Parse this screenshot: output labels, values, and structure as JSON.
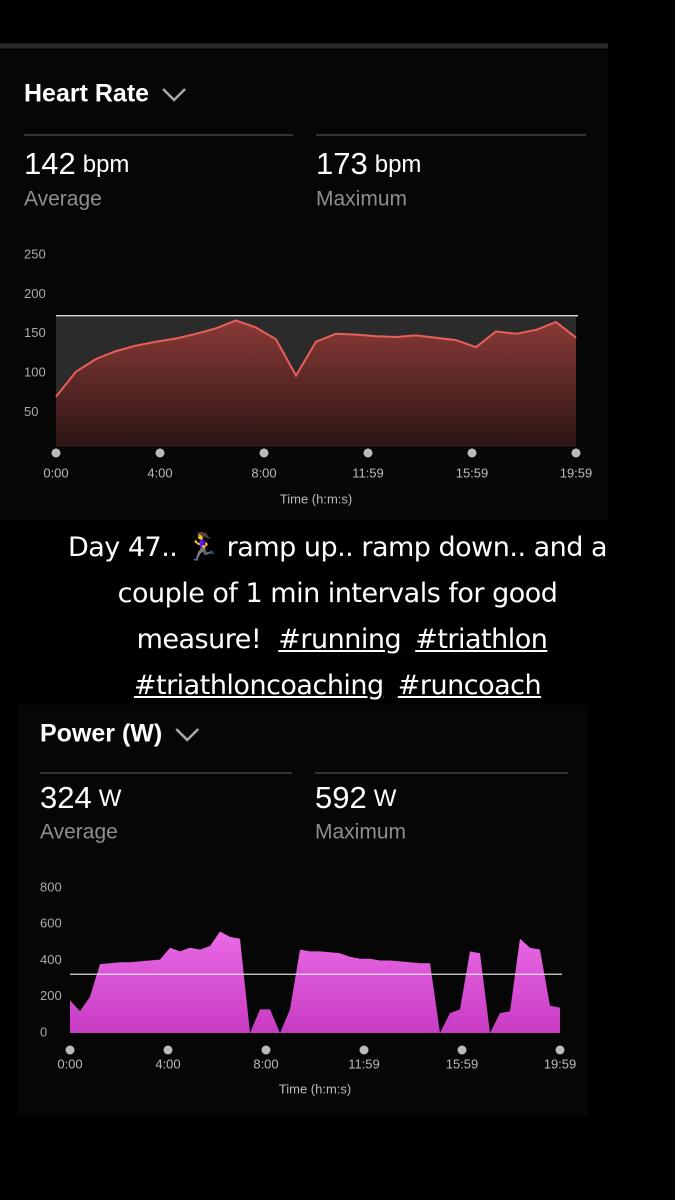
{
  "chart_data": [
    {
      "type": "area",
      "title": "Heart Rate",
      "stats": [
        {
          "value": 142,
          "unit": "bpm",
          "label": "Average"
        },
        {
          "value": 173,
          "unit": "bpm",
          "label": "Maximum"
        }
      ],
      "xlabel": "Time (h:m:s)",
      "xtick_labels": [
        "0:00",
        "4:00",
        "8:00",
        "11:59",
        "15:59",
        "19:59"
      ],
      "values": [
        70,
        102,
        118,
        128,
        135,
        140,
        144,
        150,
        157,
        167,
        158,
        143,
        97,
        140,
        150,
        149,
        147,
        146,
        148,
        145,
        142,
        133,
        153,
        150,
        155,
        165,
        145
      ],
      "ylim": [
        0,
        250
      ],
      "yticks": [
        50,
        100,
        150,
        200,
        250
      ],
      "color": "#e8605a"
    },
    {
      "type": "area",
      "title": "Power (W)",
      "stats": [
        {
          "value": 324,
          "unit": "W",
          "label": "Average"
        },
        {
          "value": 592,
          "unit": "W",
          "label": "Maximum"
        }
      ],
      "xlabel": "Time (h:m:s)",
      "xtick_labels": [
        "0:00",
        "4:00",
        "8:00",
        "11:59",
        "15:59",
        "19:59"
      ],
      "values": [
        180,
        120,
        200,
        380,
        385,
        390,
        390,
        395,
        400,
        405,
        470,
        450,
        470,
        460,
        480,
        560,
        530,
        520,
        0,
        130,
        130,
        0,
        130,
        460,
        450,
        450,
        445,
        440,
        420,
        410,
        410,
        400,
        400,
        395,
        390,
        385,
        385,
        0,
        110,
        130,
        450,
        440,
        0,
        110,
        120,
        520,
        470,
        460,
        150,
        140
      ],
      "ylim": [
        0,
        800
      ],
      "yticks": [
        0,
        200,
        400,
        600,
        800
      ],
      "color": "#dd55d8"
    }
  ],
  "caption": {
    "text": "Day 47.. 🏃‍♀️ ramp up.. ramp down.. and a couple of 1 min intervals for good measure!",
    "hashtags": [
      "#running",
      "#triathlon",
      "#triathloncoaching",
      "#runcoach"
    ]
  }
}
